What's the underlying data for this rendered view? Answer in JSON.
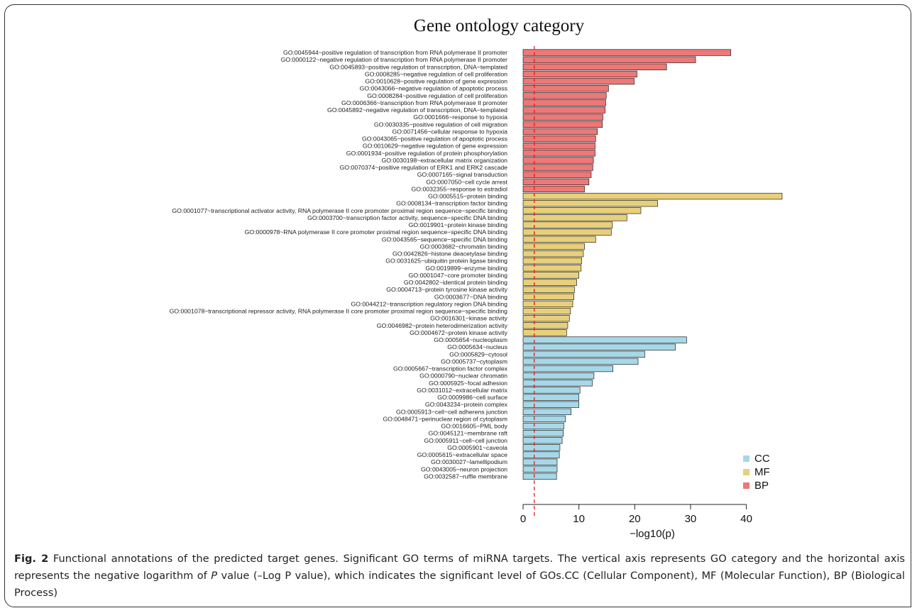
{
  "chart_data": {
    "type": "bar",
    "orientation": "horizontal",
    "title": "Gene ontology category",
    "xlabel": "−log10(p)",
    "ylabel": "",
    "xlim": [
      0,
      45
    ],
    "xticks": [
      0,
      10,
      20,
      30,
      40
    ],
    "reference_line": 2,
    "reference_line_color": "#e41a1c",
    "legend_position": "bottom-right",
    "grid": false,
    "series": [
      {
        "name": "CC",
        "color": "#a6d8e8"
      },
      {
        "name": "MF",
        "color": "#e8d07a"
      },
      {
        "name": "BP",
        "color": "#ee7777"
      }
    ],
    "bars": [
      {
        "label": "GO:0045944~positive regulation of transcription from RNA polymerase II promoter",
        "value": 37.2,
        "category": "BP"
      },
      {
        "label": "GO:0000122~negative regulation of transcription from RNA polymerase II promoter",
        "value": 30.9,
        "category": "BP"
      },
      {
        "label": "GO:0045893~positive regulation of transcription, DNA−templated",
        "value": 25.7,
        "category": "BP"
      },
      {
        "label": "GO:0008285~negative regulation of cell proliferation",
        "value": 20.4,
        "category": "BP"
      },
      {
        "label": "GO:0010628~positive regulation of gene expression",
        "value": 19.9,
        "category": "BP"
      },
      {
        "label": "GO:0043066~negative regulation of apoptotic process",
        "value": 15.3,
        "category": "BP"
      },
      {
        "label": "GO:0008284~positive regulation of cell proliferation",
        "value": 14.9,
        "category": "BP"
      },
      {
        "label": "GO:0006366~transcription from RNA polymerase II promoter",
        "value": 14.8,
        "category": "BP"
      },
      {
        "label": "GO:0045892~negative regulation of transcription, DNA−templated",
        "value": 14.7,
        "category": "BP"
      },
      {
        "label": "GO:0001666~response to hypoxia",
        "value": 14.3,
        "category": "BP"
      },
      {
        "label": "GO:0030335~positive regulation of cell migration",
        "value": 14.2,
        "category": "BP"
      },
      {
        "label": "GO:0071456~cellular response to hypoxia",
        "value": 13.3,
        "category": "BP"
      },
      {
        "label": "GO:0043065~positive regulation of apoptotic process",
        "value": 13.0,
        "category": "BP"
      },
      {
        "label": "GO:0010629~negative regulation of gene expression",
        "value": 12.9,
        "category": "BP"
      },
      {
        "label": "GO:0001934~positive regulation of protein phosphorylation",
        "value": 12.9,
        "category": "BP"
      },
      {
        "label": "GO:0030198~extracellular matrix organization",
        "value": 12.6,
        "category": "BP"
      },
      {
        "label": "GO:0070374~positive regulation of ERK1 and ERK2 cascade",
        "value": 12.5,
        "category": "BP"
      },
      {
        "label": "GO:0007165~signal transduction",
        "value": 12.2,
        "category": "BP"
      },
      {
        "label": "GO:0007050~cell cycle arrest",
        "value": 11.8,
        "category": "BP"
      },
      {
        "label": "GO:0032355~response to estradiol",
        "value": 11.0,
        "category": "BP"
      },
      {
        "label": "GO:0005515~protein binding",
        "value": 46.4,
        "category": "MF"
      },
      {
        "label": "GO:0008134~transcription factor binding",
        "value": 24.1,
        "category": "MF"
      },
      {
        "label": "GO:0001077~transcriptional activator activity, RNA polymerase II core promoter proximal region sequence−specific binding",
        "value": 21.1,
        "category": "MF"
      },
      {
        "label": "GO:0003700~transcription factor activity, sequence−specific DNA binding",
        "value": 18.6,
        "category": "MF"
      },
      {
        "label": "GO:0019901~protein kinase binding",
        "value": 16.0,
        "category": "MF"
      },
      {
        "label": "GO:0000978~RNA polymerase II core promoter proximal region sequence−specific DNA binding",
        "value": 15.8,
        "category": "MF"
      },
      {
        "label": "GO:0043565~sequence−specific DNA binding",
        "value": 13.0,
        "category": "MF"
      },
      {
        "label": "GO:0003682~chromatin binding",
        "value": 11.0,
        "category": "MF"
      },
      {
        "label": "GO:0042826~histone deacetylase binding",
        "value": 10.8,
        "category": "MF"
      },
      {
        "label": "GO:0031625~ubiquitin protein ligase binding",
        "value": 10.5,
        "category": "MF"
      },
      {
        "label": "GO:0019899~enzyme binding",
        "value": 10.4,
        "category": "MF"
      },
      {
        "label": "GO:0001047~core promoter binding",
        "value": 10.0,
        "category": "MF"
      },
      {
        "label": "GO:0042802~identical protein binding",
        "value": 9.6,
        "category": "MF"
      },
      {
        "label": "GO:0004713~protein tyrosine kinase activity",
        "value": 9.2,
        "category": "MF"
      },
      {
        "label": "GO:0003677~DNA binding",
        "value": 9.1,
        "category": "MF"
      },
      {
        "label": "GO:0044212~transcription regulatory region DNA binding",
        "value": 8.9,
        "category": "MF"
      },
      {
        "label": "GO:0001078~transcriptional repressor activity, RNA polymerase II core promoter proximal region sequence−specific binding",
        "value": 8.5,
        "category": "MF"
      },
      {
        "label": "GO:0016301~kinase activity",
        "value": 8.3,
        "category": "MF"
      },
      {
        "label": "GO:0046982~protein heterodimerization activity",
        "value": 8.0,
        "category": "MF"
      },
      {
        "label": "GO:0004672~protein kinase activity",
        "value": 7.8,
        "category": "MF"
      },
      {
        "label": "GO:0005654~nucleoplasm",
        "value": 29.3,
        "category": "CC"
      },
      {
        "label": "GO:0005634~nucleus",
        "value": 27.3,
        "category": "CC"
      },
      {
        "label": "GO:0005829~cytosol",
        "value": 21.8,
        "category": "CC"
      },
      {
        "label": "GO:0005737~cytoplasm",
        "value": 20.6,
        "category": "CC"
      },
      {
        "label": "GO:0005667~transcription factor complex",
        "value": 16.1,
        "category": "CC"
      },
      {
        "label": "GO:0000790~nuclear chromatin",
        "value": 12.7,
        "category": "CC"
      },
      {
        "label": "GO:0005925~focal adhesion",
        "value": 12.4,
        "category": "CC"
      },
      {
        "label": "GO:0031012~extracellular matrix",
        "value": 10.2,
        "category": "CC"
      },
      {
        "label": "GO:0009986~cell surface",
        "value": 10.0,
        "category": "CC"
      },
      {
        "label": "GO:0043234~protein complex",
        "value": 10.0,
        "category": "CC"
      },
      {
        "label": "GO:0005913~cell−cell adherens junction",
        "value": 8.6,
        "category": "CC"
      },
      {
        "label": "GO:0048471~perinuclear region of cytoplasm",
        "value": 7.6,
        "category": "CC"
      },
      {
        "label": "GO:0016605~PML body",
        "value": 7.3,
        "category": "CC"
      },
      {
        "label": "GO:0045121~membrane raft",
        "value": 7.2,
        "category": "CC"
      },
      {
        "label": "GO:0005911~cell−cell junction",
        "value": 7.0,
        "category": "CC"
      },
      {
        "label": "GO:0005901~caveola",
        "value": 6.6,
        "category": "CC"
      },
      {
        "label": "GO:0005615~extracellular space",
        "value": 6.5,
        "category": "CC"
      },
      {
        "label": "GO:0030027~lamellipodium",
        "value": 6.1,
        "category": "CC"
      },
      {
        "label": "GO:0043005~neuron projection",
        "value": 6.1,
        "category": "CC"
      },
      {
        "label": "GO:0032587~ruffle membrane",
        "value": 6.0,
        "category": "CC"
      }
    ]
  },
  "caption": {
    "fig_label": "Fig. 2",
    "text_1": " Functional annotations of the predicted target genes. Significant GO terms of miRNA targets. The vertical axis represents GO category and the horizontal axis represents the negative logarithm of ",
    "p_italic": "P",
    "text_2": " value (–Log P value), which indicates the significant level of GOs.CC (Cellular Component), MF (Molecular Function), BP (Biological Process)"
  }
}
